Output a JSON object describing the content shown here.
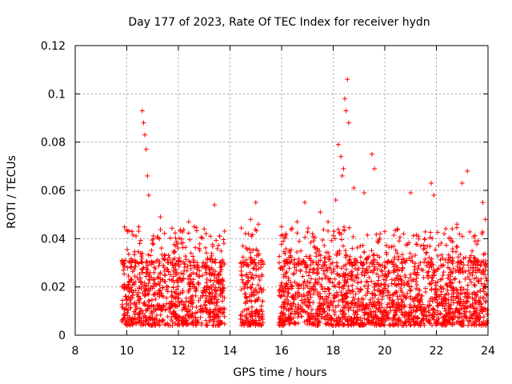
{
  "chart_data": {
    "type": "scatter",
    "title": "Day 177 of 2023, Rate Of TEC Index for receiver hydn",
    "xlabel": "GPS time / hours",
    "ylabel": "ROTI / TECUs",
    "xlim": [
      8,
      24
    ],
    "ylim": [
      0,
      0.12
    ],
    "xticks": [
      8,
      10,
      12,
      14,
      16,
      18,
      20,
      22,
      24
    ],
    "xtick_labels": [
      "8",
      "10",
      "12",
      "14",
      "16",
      "18",
      "20",
      "22",
      "24"
    ],
    "yticks": [
      0,
      0.02,
      0.04,
      0.06,
      0.08,
      0.1,
      0.12
    ],
    "ytick_labels": [
      "0",
      "0.02",
      "0.04",
      "0.06",
      "0.08",
      "0.1",
      "0.12"
    ],
    "grid": true,
    "marker": "+",
    "color": "#ff0000",
    "observation_intervals_hours": [
      [
        9.8,
        13.8
      ],
      [
        14.4,
        15.3
      ],
      [
        15.9,
        24.0
      ]
    ],
    "typical_range": [
      0.004,
      0.03
    ],
    "series": [
      {
        "name": "ROTI",
        "x": [
          9.9,
          10.2,
          10.5,
          10.6,
          10.65,
          10.7,
          10.75,
          10.8,
          10.85,
          11.0,
          11.3,
          11.5,
          12.0,
          12.4,
          12.8,
          13.0,
          13.4,
          13.6,
          14.5,
          14.8,
          15.0,
          15.1,
          15.2,
          16.0,
          16.3,
          16.6,
          16.9,
          17.2,
          17.5,
          17.8,
          18.1,
          18.2,
          18.3,
          18.35,
          18.4,
          18.45,
          18.5,
          18.55,
          18.6,
          18.8,
          19.2,
          19.5,
          19.6,
          20.0,
          20.5,
          21.0,
          21.3,
          21.8,
          21.9,
          22.3,
          22.8,
          23.0,
          23.2,
          23.5,
          23.8,
          23.9
        ],
        "y": [
          0.021,
          0.043,
          0.038,
          0.093,
          0.088,
          0.083,
          0.077,
          0.066,
          0.058,
          0.038,
          0.049,
          0.033,
          0.031,
          0.047,
          0.036,
          0.044,
          0.054,
          0.041,
          0.037,
          0.048,
          0.055,
          0.046,
          0.031,
          0.045,
          0.035,
          0.047,
          0.055,
          0.042,
          0.051,
          0.047,
          0.056,
          0.079,
          0.074,
          0.066,
          0.069,
          0.098,
          0.093,
          0.106,
          0.088,
          0.061,
          0.059,
          0.075,
          0.069,
          0.043,
          0.044,
          0.059,
          0.041,
          0.063,
          0.058,
          0.042,
          0.046,
          0.063,
          0.068,
          0.039,
          0.055,
          0.048
        ]
      }
    ]
  }
}
